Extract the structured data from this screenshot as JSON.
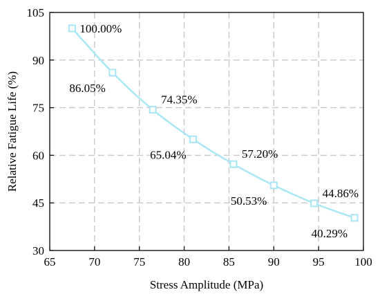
{
  "chart_data": {
    "type": "line",
    "xlabel": "Stress Amplitude (MPa)",
    "ylabel": "Relative Fatigue Life (%)",
    "xlim": [
      65,
      100
    ],
    "ylim": [
      30,
      105
    ],
    "xticks": [
      65,
      70,
      75,
      80,
      85,
      90,
      95,
      100
    ],
    "yticks": [
      30,
      45,
      60,
      75,
      90,
      105
    ],
    "grid": true,
    "color": "#a6e6f5",
    "series": [
      {
        "x": [
          67.5,
          72,
          76.5,
          81,
          85.5,
          90,
          94.5,
          99
        ],
        "values": [
          100.0,
          86.05,
          74.35,
          65.04,
          57.2,
          50.53,
          44.86,
          40.29
        ],
        "labels": [
          "100.00%",
          "86.05%",
          "74.35%",
          "65.04%",
          "57.20%",
          "50.53%",
          "44.86%",
          "40.29%"
        ],
        "label_positions": [
          "right",
          "below-left",
          "above-right",
          "below-left",
          "above-right",
          "below-left",
          "above-right",
          "below-left"
        ]
      }
    ]
  }
}
